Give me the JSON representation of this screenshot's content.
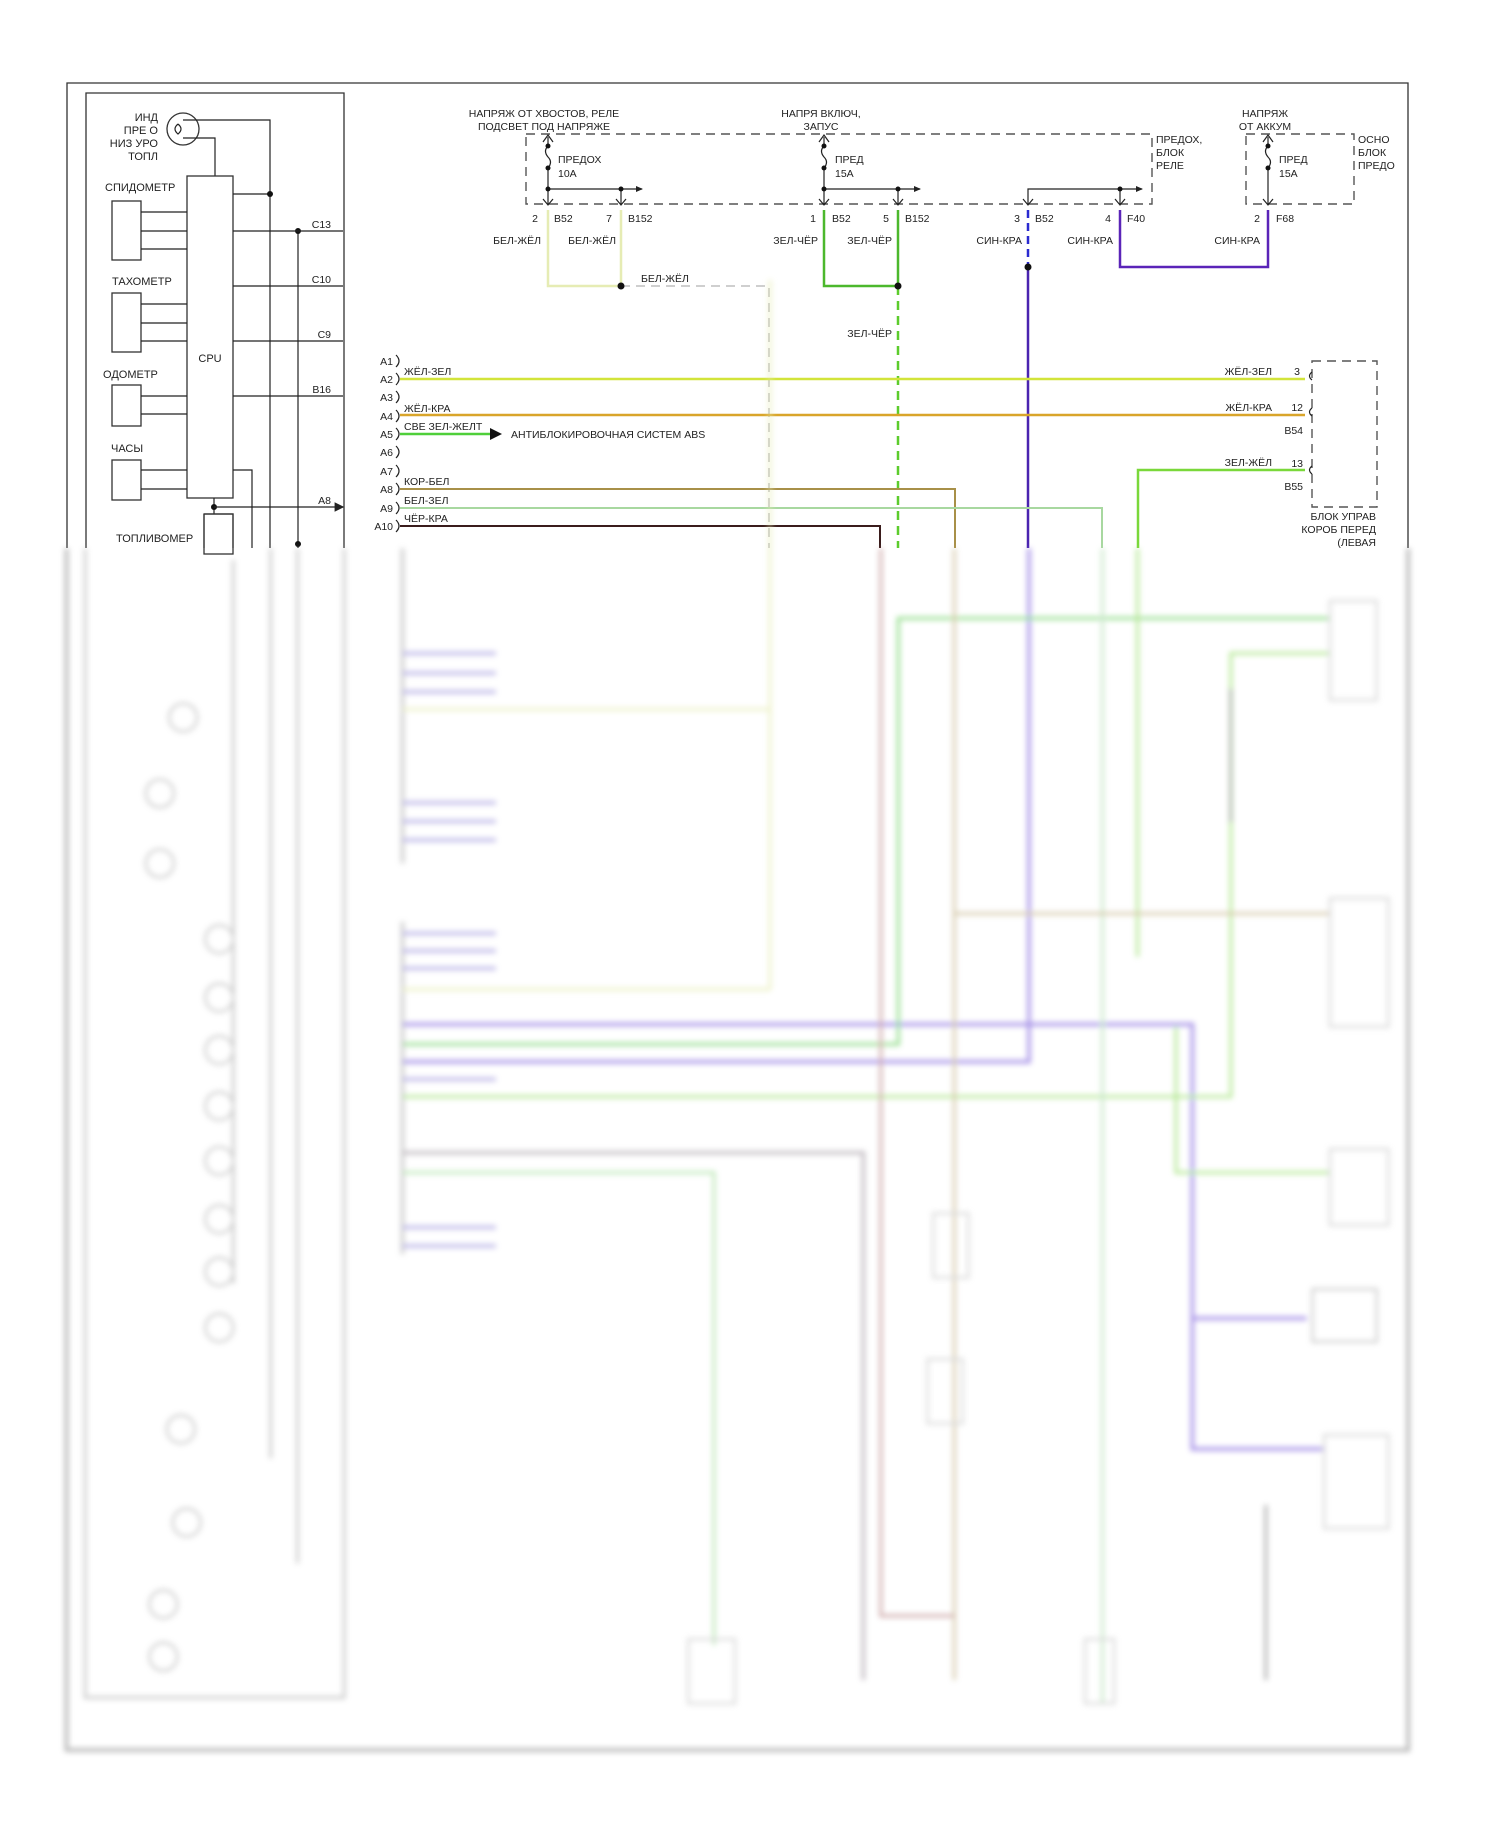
{
  "cluster": {
    "lamp_label": [
      "ИНД",
      "ПРЕ О",
      "НИЗ УРО",
      "ТОПЛ"
    ],
    "speedometer": "СПИДОМЕТР",
    "tachometer": "ТАХОМЕТР",
    "odometer": "ОДОМЕТР",
    "clock": "ЧАСЫ",
    "cpu": "CPU",
    "fuel_gauge": "ТОПЛИВОМЕР",
    "outputs": [
      "C13",
      "C10",
      "C9",
      "B16",
      "A8"
    ]
  },
  "fuse_block": {
    "label": [
      "ПРЕДОХ,",
      "БЛОК",
      "РЕЛЕ"
    ],
    "tail_supply": [
      "НАПРЯЖ ОТ ХВОСТОВ, РЕЛЕ",
      "ПОДСВЕТ ПОД НАПРЯЖЕ"
    ],
    "ign_supply": [
      "НАПРЯ ВКЛЮЧ,",
      "ЗАПУС"
    ],
    "fuse1": [
      "ПРЕДОХ",
      "10A"
    ],
    "fuse2": [
      "ПРЕД",
      "15A"
    ],
    "pins": [
      {
        "num": "2",
        "conn": "B52",
        "wire": "БЕЛ-ЖЁЛ"
      },
      {
        "num": "7",
        "conn": "B152",
        "wire": "БЕЛ-ЖЁЛ"
      },
      {
        "num": "1",
        "conn": "B52",
        "wire": "ЗЕЛ-ЧЁР"
      },
      {
        "num": "5",
        "conn": "B152",
        "wire": "ЗЕЛ-ЧЁР"
      },
      {
        "num": "3",
        "conn": "B52",
        "wire": "СИН-КРА"
      },
      {
        "num": "4",
        "conn": "F40",
        "wire": "СИН-КРА"
      }
    ],
    "splice_label_1": "БЕЛ-ЖЁЛ",
    "splice_label_2": "ЗЕЛ-ЧЁР"
  },
  "main_fuse_block": {
    "supply": [
      "НАПРЯЖ",
      "ОТ АККУМ"
    ],
    "label": [
      "ОСНО",
      "БЛОК",
      "ПРЕДО"
    ],
    "fuse": [
      "ПРЕД",
      "15A"
    ],
    "pin": {
      "num": "2",
      "conn": "F68",
      "wire": "СИН-КРА"
    }
  },
  "connector_a": {
    "pins": [
      "A1",
      "A2",
      "A3",
      "A4",
      "A5",
      "A6",
      "A7",
      "A8",
      "A9",
      "A10"
    ],
    "wires": {
      "A2": "ЖЁЛ-ЗЕЛ",
      "A4": "ЖЁЛ-КРА",
      "A5": "СВЕ ЗЕЛ-ЖЕЛТ",
      "A8": "КОР-БЕЛ",
      "A9": "БЕЛ-ЗЕЛ",
      "A10": "ЧЁР-КРА"
    },
    "abs_target": "АНТИБЛОКИРОВОЧНАЯ СИСТЕМ ABS"
  },
  "tcm": {
    "wire_1": "ЖЁЛ-ЗЕЛ",
    "pin_1": "3",
    "wire_2": "ЖЁЛ-КРА",
    "pin_2": "12",
    "conn_1": "B54",
    "wire_3": "ЗЕЛ-ЖЁЛ",
    "pin_3": "13",
    "conn_2": "B55",
    "label": [
      "БЛОК УПРАВ",
      "КОРОБ ПЕРЕД",
      "(ЛЕВАЯ"
    ]
  },
  "colors": {
    "yellow_green": "#d2e43a",
    "yellow_red": "#d9a52a",
    "light_green": "#4fcf3a",
    "brown_white": "#a89048",
    "white_green": "#a8d8a0",
    "black_red": "#3a1c1c",
    "white_yellow": "#e6ecb4",
    "green_black": "#4cb82c",
    "blue_red": "#4a24b0"
  }
}
